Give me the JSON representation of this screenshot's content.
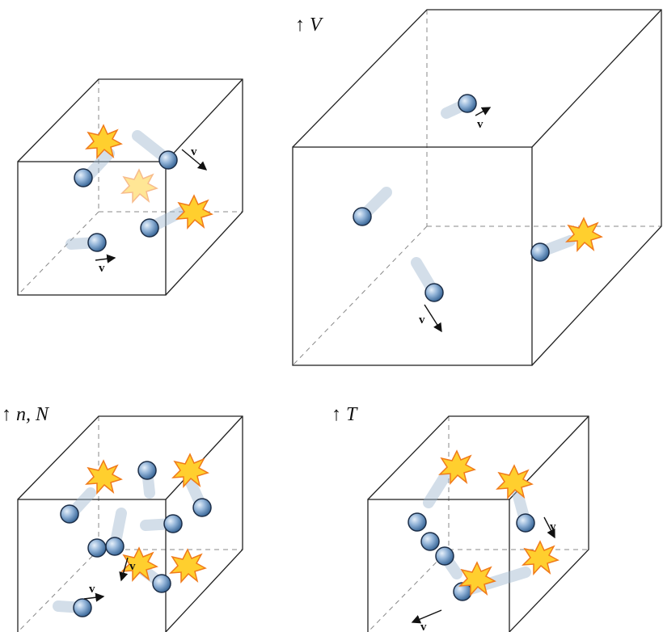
{
  "panels": [
    {
      "label": null,
      "velocity_labels": [
        "v",
        "v"
      ]
    },
    {
      "label": "↑ V",
      "velocity_labels": [
        "v",
        "v"
      ]
    },
    {
      "label": "↑ n, N",
      "velocity_labels": [
        "v",
        "v"
      ]
    },
    {
      "label": "↑ T",
      "velocity_labels": [
        "v",
        "v"
      ]
    }
  ]
}
